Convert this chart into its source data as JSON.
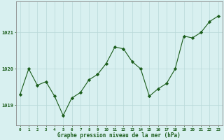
{
  "hours": [
    0,
    1,
    2,
    3,
    4,
    5,
    6,
    7,
    8,
    9,
    10,
    11,
    12,
    13,
    14,
    15,
    16,
    17,
    18,
    19,
    20,
    21,
    22,
    23
  ],
  "pressure": [
    1019.3,
    1020.0,
    1019.55,
    1019.65,
    1019.25,
    1018.72,
    1019.2,
    1019.35,
    1019.7,
    1019.85,
    1020.15,
    1020.6,
    1020.55,
    1020.2,
    1020.0,
    1019.25,
    1019.45,
    1019.6,
    1020.0,
    1020.9,
    1020.85,
    1021.0,
    1021.3,
    1021.45
  ],
  "line_color": "#1a5c1a",
  "marker_color": "#1a5c1a",
  "bg_color": "#d8f0f0",
  "grid_color": "#b8d8d8",
  "xlabel": "Graphe pression niveau de la mer (hPa)",
  "xlabel_color": "#1a5c1a",
  "tick_color": "#1a5c1a",
  "ylim_min": 1018.45,
  "ylim_max": 1021.85,
  "yticks": [
    1019,
    1020,
    1021
  ],
  "figsize": [
    3.2,
    2.0
  ],
  "dpi": 100
}
